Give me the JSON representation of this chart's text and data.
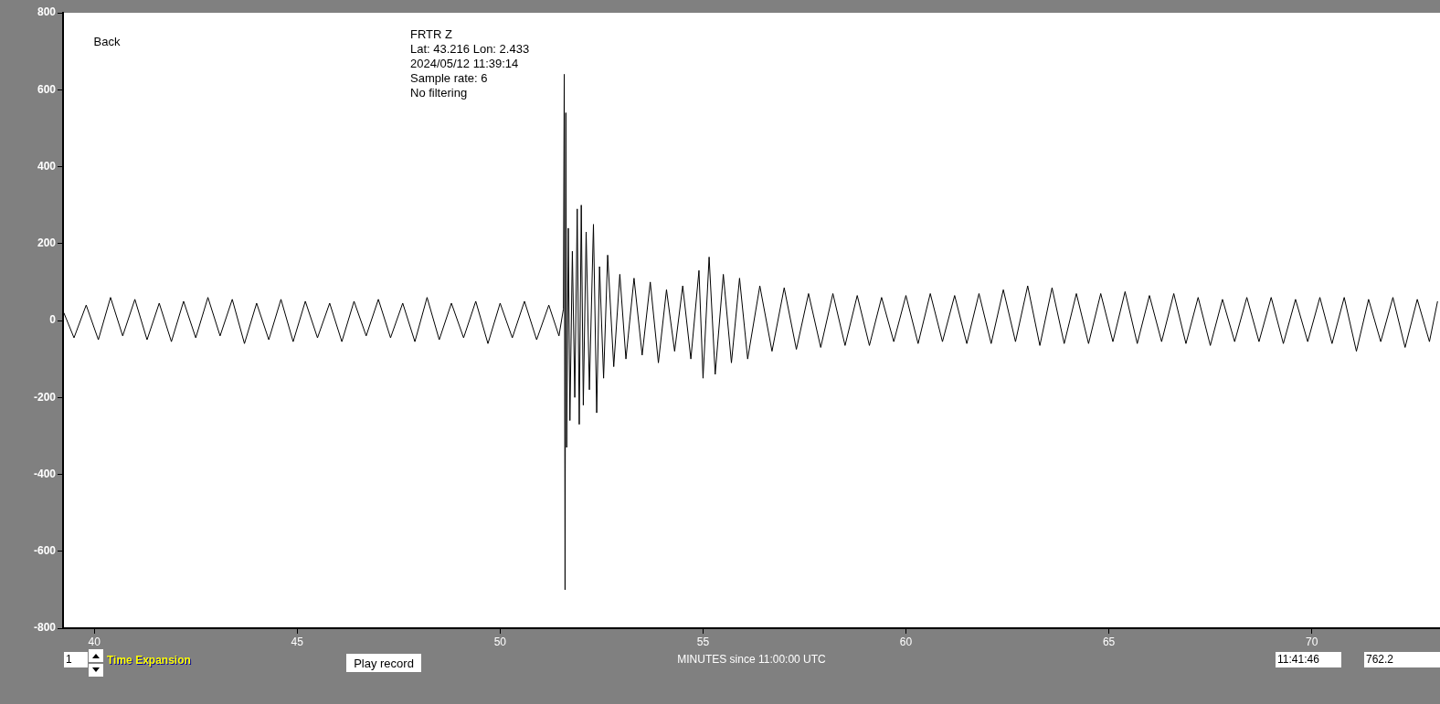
{
  "chart_data": {
    "type": "line",
    "xlabel": "MINUTES since 11:00:00 UTC",
    "annotations": [
      "FRTR  Z",
      "Lat: 43.216 Lon: 2.433",
      "2024/05/12 11:39:14",
      "Sample rate: 6",
      "No filtering",
      "Back",
      "1",
      "Time Expansion",
      "Play record",
      "11:41:46",
      "762.2"
    ],
    "x": [
      39.25,
      39.5,
      39.8,
      40.1,
      40.4,
      40.7,
      41.0,
      41.3,
      41.6,
      41.9,
      42.2,
      42.5,
      42.8,
      43.1,
      43.4,
      43.7,
      44.0,
      44.3,
      44.6,
      44.9,
      45.2,
      45.5,
      45.8,
      46.1,
      46.4,
      46.7,
      47.0,
      47.3,
      47.6,
      47.9,
      48.2,
      48.5,
      48.8,
      49.1,
      49.4,
      49.7,
      50.0,
      50.3,
      50.6,
      50.9,
      51.2,
      51.45,
      51.56,
      51.58,
      51.6,
      51.62,
      51.64,
      51.68,
      51.72,
      51.78,
      51.84,
      51.9,
      51.95,
      52.0,
      52.05,
      52.12,
      52.2,
      52.3,
      52.38,
      52.45,
      52.55,
      52.65,
      52.8,
      52.95,
      53.1,
      53.3,
      53.5,
      53.7,
      53.9,
      54.1,
      54.3,
      54.5,
      54.7,
      54.9,
      55.0,
      55.15,
      55.3,
      55.5,
      55.7,
      55.9,
      56.1,
      56.4,
      56.7,
      57.0,
      57.3,
      57.6,
      57.9,
      58.2,
      58.5,
      58.8,
      59.1,
      59.4,
      59.7,
      60.0,
      60.3,
      60.6,
      60.9,
      61.2,
      61.5,
      61.8,
      62.1,
      62.4,
      62.7,
      63.0,
      63.3,
      63.6,
      63.9,
      64.2,
      64.5,
      64.8,
      65.1,
      65.4,
      65.7,
      66.0,
      66.3,
      66.6,
      66.9,
      67.2,
      67.5,
      67.8,
      68.1,
      68.4,
      68.7,
      69.0,
      69.3,
      69.6,
      69.9,
      70.2,
      70.5,
      70.8,
      71.1,
      71.4,
      71.7,
      72.0,
      72.3,
      72.6,
      72.9,
      73.1
    ],
    "series": [
      {
        "color": "#000000",
        "values": [
          20,
          -45,
          40,
          -50,
          60,
          -40,
          55,
          -50,
          45,
          -55,
          50,
          -45,
          60,
          -40,
          55,
          -60,
          45,
          -50,
          55,
          -55,
          50,
          -45,
          45,
          -55,
          50,
          -40,
          55,
          -45,
          45,
          -55,
          60,
          -50,
          45,
          -45,
          50,
          -60,
          45,
          -45,
          50,
          -50,
          40,
          -40,
          30,
          640,
          -700,
          540,
          -330,
          240,
          -260,
          180,
          -200,
          290,
          -270,
          300,
          -220,
          230,
          -180,
          250,
          -240,
          140,
          -150,
          170,
          -120,
          120,
          -100,
          110,
          -90,
          100,
          -110,
          80,
          -80,
          90,
          -100,
          130,
          -150,
          165,
          -140,
          120,
          -110,
          110,
          -100,
          90,
          -80,
          85,
          -75,
          70,
          -70,
          70,
          -65,
          65,
          -65,
          60,
          -55,
          65,
          -60,
          70,
          -55,
          65,
          -60,
          70,
          -60,
          80,
          -55,
          90,
          -65,
          85,
          -60,
          70,
          -60,
          70,
          -55,
          75,
          -60,
          65,
          -55,
          70,
          -60,
          60,
          -65,
          55,
          -55,
          60,
          -55,
          60,
          -60,
          55,
          -55,
          60,
          -60,
          60,
          -80,
          55,
          -55,
          60,
          -70,
          55,
          -55,
          50
        ]
      }
    ],
    "xlim": [
      39.23,
      73.16
    ],
    "xticks": [
      40,
      45,
      50,
      55,
      60,
      65,
      70
    ],
    "ylim": [
      -800,
      800
    ],
    "yticks": [
      -800,
      -600,
      -400,
      -200,
      0,
      200,
      400,
      600,
      800
    ],
    "grid": false,
    "legend": false,
    "marker": "none",
    "line_style": "solid"
  }
}
